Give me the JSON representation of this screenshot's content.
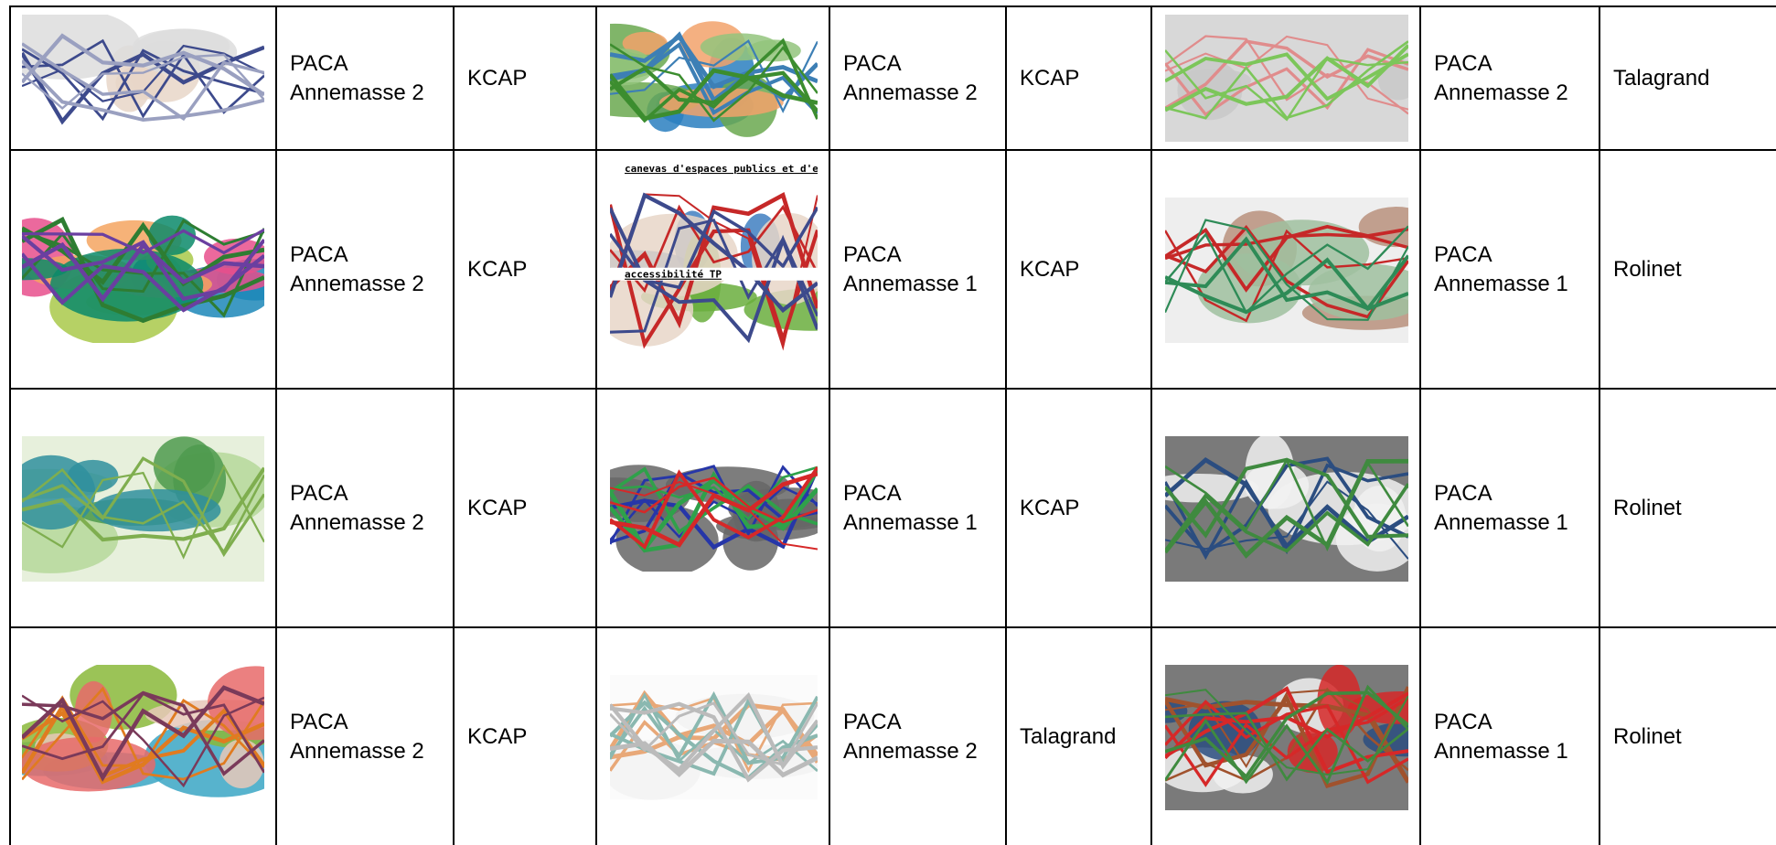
{
  "table": {
    "rows": [
      [
        {
          "site": "PACA\nAnnemasse 2",
          "author": "KCAP"
        },
        {
          "site": "PACA\nAnnemasse 2",
          "author": "KCAP"
        },
        {
          "site": "PACA\nAnnemasse 2",
          "author": "Talagrand"
        }
      ],
      [
        {
          "site": "PACA\nAnnemasse 2",
          "author": "KCAP"
        },
        {
          "site": "PACA\nAnnemasse 1",
          "author": "KCAP",
          "map_text": [
            "canevas d'espaces publics et d'espace",
            "accessibilité TP"
          ]
        },
        {
          "site": "PACA\nAnnemasse 1",
          "author": "Rolinet"
        }
      ],
      [
        {
          "site": "PACA\nAnnemasse 2",
          "author": "KCAP"
        },
        {
          "site": "PACA\nAnnemasse 1",
          "author": "KCAP"
        },
        {
          "site": "PACA\nAnnemasse 1",
          "author": "Rolinet"
        }
      ],
      [
        {
          "site": "PACA\nAnnemasse 2",
          "author": "KCAP"
        },
        {
          "site": "PACA\nAnnemasse 2",
          "author": "Talagrand"
        },
        {
          "site": "PACA\nAnnemasse 1",
          "author": "Rolinet"
        }
      ]
    ]
  }
}
